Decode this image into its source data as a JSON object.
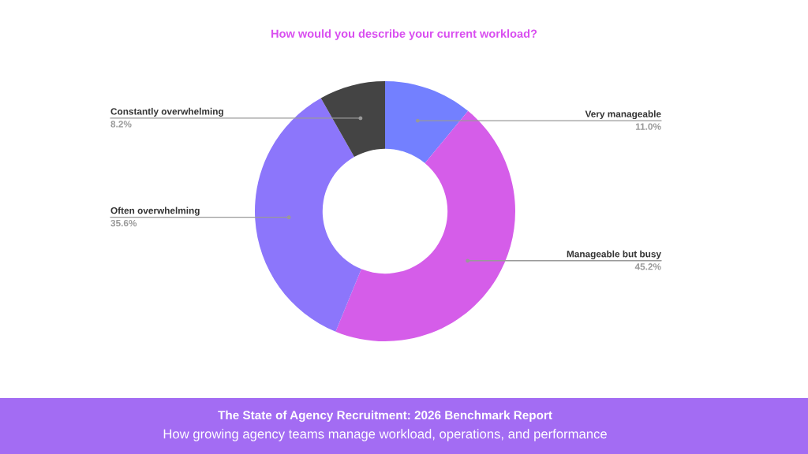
{
  "chart_data": {
    "type": "donut",
    "title": "How would you describe your current workload?",
    "categories": [
      "Very manageable",
      "Manageable but busy",
      "Often overwhelming",
      "Constantly overwhelming"
    ],
    "values": [
      11.0,
      45.2,
      35.6,
      8.2
    ],
    "colors": [
      "#7380ff",
      "#d55de9",
      "#8c76fb",
      "#444444"
    ],
    "value_labels": [
      "11.0%",
      "45.2%",
      "35.6%",
      "8.2%"
    ],
    "annotations": [
      "The State of Agency Recruitment: 2026 Benchmark Report",
      "How growing agency teams manage workload, operations, and performance"
    ]
  }
}
